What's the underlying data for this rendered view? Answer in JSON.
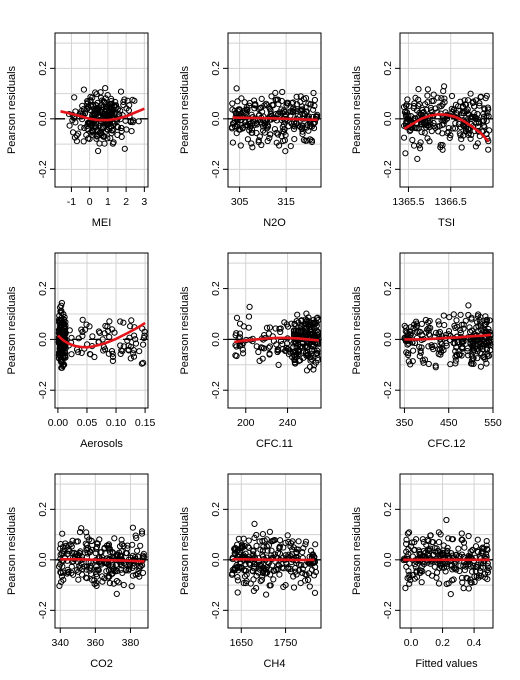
{
  "figure": {
    "background": "#ffffff",
    "grid_color": "#d3d3d3",
    "point_color": "#000000",
    "fit_color": "#e4141b",
    "zero_line_color": "#000000"
  },
  "chart_data": [
    {
      "type": "scatter",
      "xlabel": "MEI",
      "ylabel": "Pearson residuals",
      "xlim": [
        -1.9,
        3.2
      ],
      "ylim": [
        -0.27,
        0.34
      ],
      "xticks": [
        -1,
        0,
        1,
        2,
        3
      ],
      "xtick_labels": [
        "-1",
        "0",
        "1",
        "2",
        "3"
      ],
      "yticks": [
        -0.2,
        0,
        0.2
      ],
      "ytick_labels": [
        "-0.2",
        "0.0",
        "0.2"
      ],
      "grid": true,
      "fit": {
        "x": [
          -1.6,
          -1.0,
          -0.5,
          0.0,
          0.5,
          1.0,
          1.5,
          2.0,
          2.5,
          3.0
        ],
        "y": [
          0.03,
          0.02,
          0.01,
          0.0,
          -0.005,
          -0.005,
          0.0,
          0.01,
          0.025,
          0.04
        ]
      }
    },
    {
      "type": "scatter",
      "xlabel": "N2O",
      "ylabel": "Pearson residuals",
      "xlim": [
        302.5,
        322.5
      ],
      "ylim": [
        -0.27,
        0.34
      ],
      "xticks": [
        305,
        315
      ],
      "xtick_labels": [
        "305",
        "315"
      ],
      "yticks": [
        -0.2,
        0,
        0.2
      ],
      "ytick_labels": [
        "-0.2",
        "0.0",
        "0.2"
      ],
      "grid": true,
      "fit": {
        "x": [
          303.5,
          306,
          309,
          312,
          315,
          318,
          321.8
        ],
        "y": [
          0.005,
          0.004,
          0.003,
          0.002,
          0.0,
          -0.002,
          -0.004
        ]
      }
    },
    {
      "type": "scatter",
      "xlabel": "TSI",
      "ylabel": "Pearson residuals",
      "xlim": [
        1365.3,
        1367.5
      ],
      "ylim": [
        -0.27,
        0.34
      ],
      "xticks": [
        1365.5,
        1366.5
      ],
      "xtick_labels": [
        "1365.5",
        "1366.5"
      ],
      "yticks": [
        -0.2,
        0,
        0.2
      ],
      "ytick_labels": [
        "-0.2",
        "0.0",
        "0.2"
      ],
      "grid": true,
      "fit": {
        "x": [
          1365.4,
          1365.6,
          1365.8,
          1366.0,
          1366.2,
          1366.4,
          1366.6,
          1366.8,
          1367.0,
          1367.2,
          1367.4
        ],
        "y": [
          -0.04,
          -0.02,
          0.0,
          0.012,
          0.018,
          0.016,
          0.008,
          -0.008,
          -0.03,
          -0.055,
          -0.09
        ]
      }
    },
    {
      "type": "scatter",
      "xlabel": "Aerosols",
      "ylabel": "Pearson residuals",
      "xlim": [
        -0.005,
        0.155
      ],
      "ylim": [
        -0.27,
        0.34
      ],
      "xticks": [
        0.0,
        0.05,
        0.1,
        0.15
      ],
      "xtick_labels": [
        "0.00",
        "0.05",
        "0.10",
        "0.15"
      ],
      "yticks": [
        -0.2,
        0,
        0.2
      ],
      "ytick_labels": [
        "-0.2",
        "0.0",
        "0.2"
      ],
      "grid": true,
      "fit": {
        "x": [
          0.0,
          0.01,
          0.02,
          0.03,
          0.04,
          0.05,
          0.06,
          0.08,
          0.1,
          0.12,
          0.14,
          0.15
        ],
        "y": [
          0.015,
          -0.005,
          -0.018,
          -0.026,
          -0.03,
          -0.031,
          -0.028,
          -0.016,
          0.002,
          0.025,
          0.05,
          0.065
        ]
      }
    },
    {
      "type": "scatter",
      "xlabel": "CFC.11",
      "ylabel": "Pearson residuals",
      "xlim": [
        183,
        272
      ],
      "ylim": [
        -0.27,
        0.34
      ],
      "xticks": [
        200,
        240
      ],
      "xtick_labels": [
        "200",
        "240"
      ],
      "yticks": [
        -0.2,
        0,
        0.2
      ],
      "ytick_labels": [
        "-0.2",
        "0.0",
        "0.2"
      ],
      "grid": true,
      "fit": {
        "x": [
          189,
          200,
          210,
          220,
          230,
          240,
          250,
          260,
          270
        ],
        "y": [
          -0.01,
          -0.004,
          0.0,
          0.004,
          0.006,
          0.006,
          0.004,
          0.0,
          -0.004
        ]
      }
    },
    {
      "type": "scatter",
      "xlabel": "CFC.12",
      "ylabel": "Pearson residuals",
      "xlim": [
        340,
        550
      ],
      "ylim": [
        -0.27,
        0.34
      ],
      "xticks": [
        350,
        450,
        550
      ],
      "xtick_labels": [
        "350",
        "450",
        "550"
      ],
      "yticks": [
        -0.2,
        0,
        0.2
      ],
      "ytick_labels": [
        "-0.2",
        "0.0",
        "0.2"
      ],
      "grid": true,
      "fit": {
        "x": [
          350,
          380,
          410,
          440,
          470,
          500,
          530,
          545
        ],
        "y": [
          0.0,
          0.0,
          0.002,
          0.005,
          0.008,
          0.012,
          0.015,
          0.018
        ]
      }
    },
    {
      "type": "scatter",
      "xlabel": "CO2",
      "ylabel": "Pearson residuals",
      "xlim": [
        337,
        390
      ],
      "ylim": [
        -0.27,
        0.34
      ],
      "xticks": [
        340,
        360,
        380
      ],
      "xtick_labels": [
        "340",
        "360",
        "380"
      ],
      "yticks": [
        -0.2,
        0,
        0.2
      ],
      "ytick_labels": [
        "-0.2",
        "0.0",
        "0.2"
      ],
      "grid": true,
      "fit": {
        "x": [
          340,
          350,
          360,
          370,
          380,
          388
        ],
        "y": [
          0.002,
          0.002,
          0.0,
          -0.002,
          -0.004,
          -0.006
        ]
      }
    },
    {
      "type": "scatter",
      "xlabel": "CH4",
      "ylabel": "Pearson residuals",
      "xlim": [
        1620,
        1830
      ],
      "ylim": [
        -0.27,
        0.34
      ],
      "xticks": [
        1650,
        1750
      ],
      "xtick_labels": [
        "1650",
        "1750"
      ],
      "yticks": [
        -0.2,
        0,
        0.2
      ],
      "ytick_labels": [
        "-0.2",
        "0.0",
        "0.2"
      ],
      "grid": true,
      "fit": {
        "x": [
          1630,
          1660,
          1690,
          1720,
          1750,
          1780,
          1815
        ],
        "y": [
          0.002,
          0.002,
          0.001,
          0.0,
          0.0,
          -0.001,
          0.0
        ]
      }
    },
    {
      "type": "scatter",
      "xlabel": "Fitted values",
      "ylabel": "Pearson residuals",
      "xlim": [
        -0.07,
        0.52
      ],
      "ylim": [
        -0.27,
        0.34
      ],
      "xticks": [
        0.0,
        0.2,
        0.4
      ],
      "xtick_labels": [
        "0.0",
        "0.2",
        "0.4"
      ],
      "yticks": [
        -0.2,
        0,
        0.2
      ],
      "ytick_labels": [
        "-0.2",
        "0.0",
        "0.2"
      ],
      "grid": true,
      "fit": {
        "x": [
          -0.05,
          0.0,
          0.1,
          0.2,
          0.3,
          0.4,
          0.5
        ],
        "y": [
          0.0,
          0.0,
          0.0,
          0.0,
          0.0,
          0.0,
          0.0
        ]
      }
    }
  ]
}
